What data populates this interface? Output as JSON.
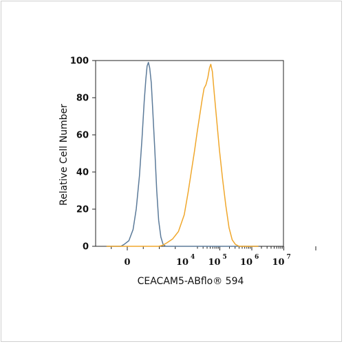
{
  "chart_data": {
    "type": "line",
    "xlabel": "CEACAM5-ABflo® 594",
    "ylabel": "Relative Cell Number",
    "x_scale": "biexponential",
    "x_ticks": [
      {
        "base": "0",
        "exp": ""
      },
      {
        "base": "10",
        "exp": "4"
      },
      {
        "base": "10",
        "exp": "5"
      },
      {
        "base": "10",
        "exp": "6"
      },
      {
        "base": "10",
        "exp": "7"
      }
    ],
    "y_ticks": [
      "0",
      "20",
      "40",
      "60",
      "80",
      "100"
    ],
    "ylim": [
      0,
      100
    ],
    "grid": false,
    "series": [
      {
        "color": "#5b7a99",
        "points": [
          [
            -0.65,
            0
          ],
          [
            -0.2,
            0
          ],
          [
            -0.1,
            1
          ],
          [
            0.05,
            3
          ],
          [
            0.18,
            9
          ],
          [
            0.28,
            20
          ],
          [
            0.38,
            38
          ],
          [
            0.46,
            58
          ],
          [
            0.53,
            78
          ],
          [
            0.58,
            90
          ],
          [
            0.62,
            97
          ],
          [
            0.66,
            99
          ],
          [
            0.7,
            96
          ],
          [
            0.75,
            88
          ],
          [
            0.8,
            72
          ],
          [
            0.86,
            52
          ],
          [
            0.92,
            30
          ],
          [
            0.98,
            14
          ],
          [
            1.05,
            5
          ],
          [
            1.12,
            1
          ],
          [
            1.2,
            0
          ],
          [
            4.1,
            0
          ]
        ]
      },
      {
        "color": "#f0a72b",
        "points": [
          [
            -0.65,
            0
          ],
          [
            0.98,
            0
          ],
          [
            1.1,
            0.5
          ],
          [
            1.25,
            2
          ],
          [
            1.42,
            4
          ],
          [
            1.6,
            8
          ],
          [
            1.78,
            17
          ],
          [
            1.9,
            29
          ],
          [
            2.0,
            40
          ],
          [
            2.1,
            51
          ],
          [
            2.18,
            61
          ],
          [
            2.26,
            70
          ],
          [
            2.34,
            79
          ],
          [
            2.4,
            85
          ],
          [
            2.46,
            87
          ],
          [
            2.52,
            91
          ],
          [
            2.57,
            96
          ],
          [
            2.61,
            98
          ],
          [
            2.66,
            94
          ],
          [
            2.72,
            82
          ],
          [
            2.8,
            67
          ],
          [
            2.88,
            52
          ],
          [
            2.98,
            36
          ],
          [
            3.08,
            22
          ],
          [
            3.18,
            10
          ],
          [
            3.28,
            3.5
          ],
          [
            3.38,
            1
          ],
          [
            3.5,
            0
          ],
          [
            4.1,
            0
          ]
        ]
      }
    ]
  }
}
